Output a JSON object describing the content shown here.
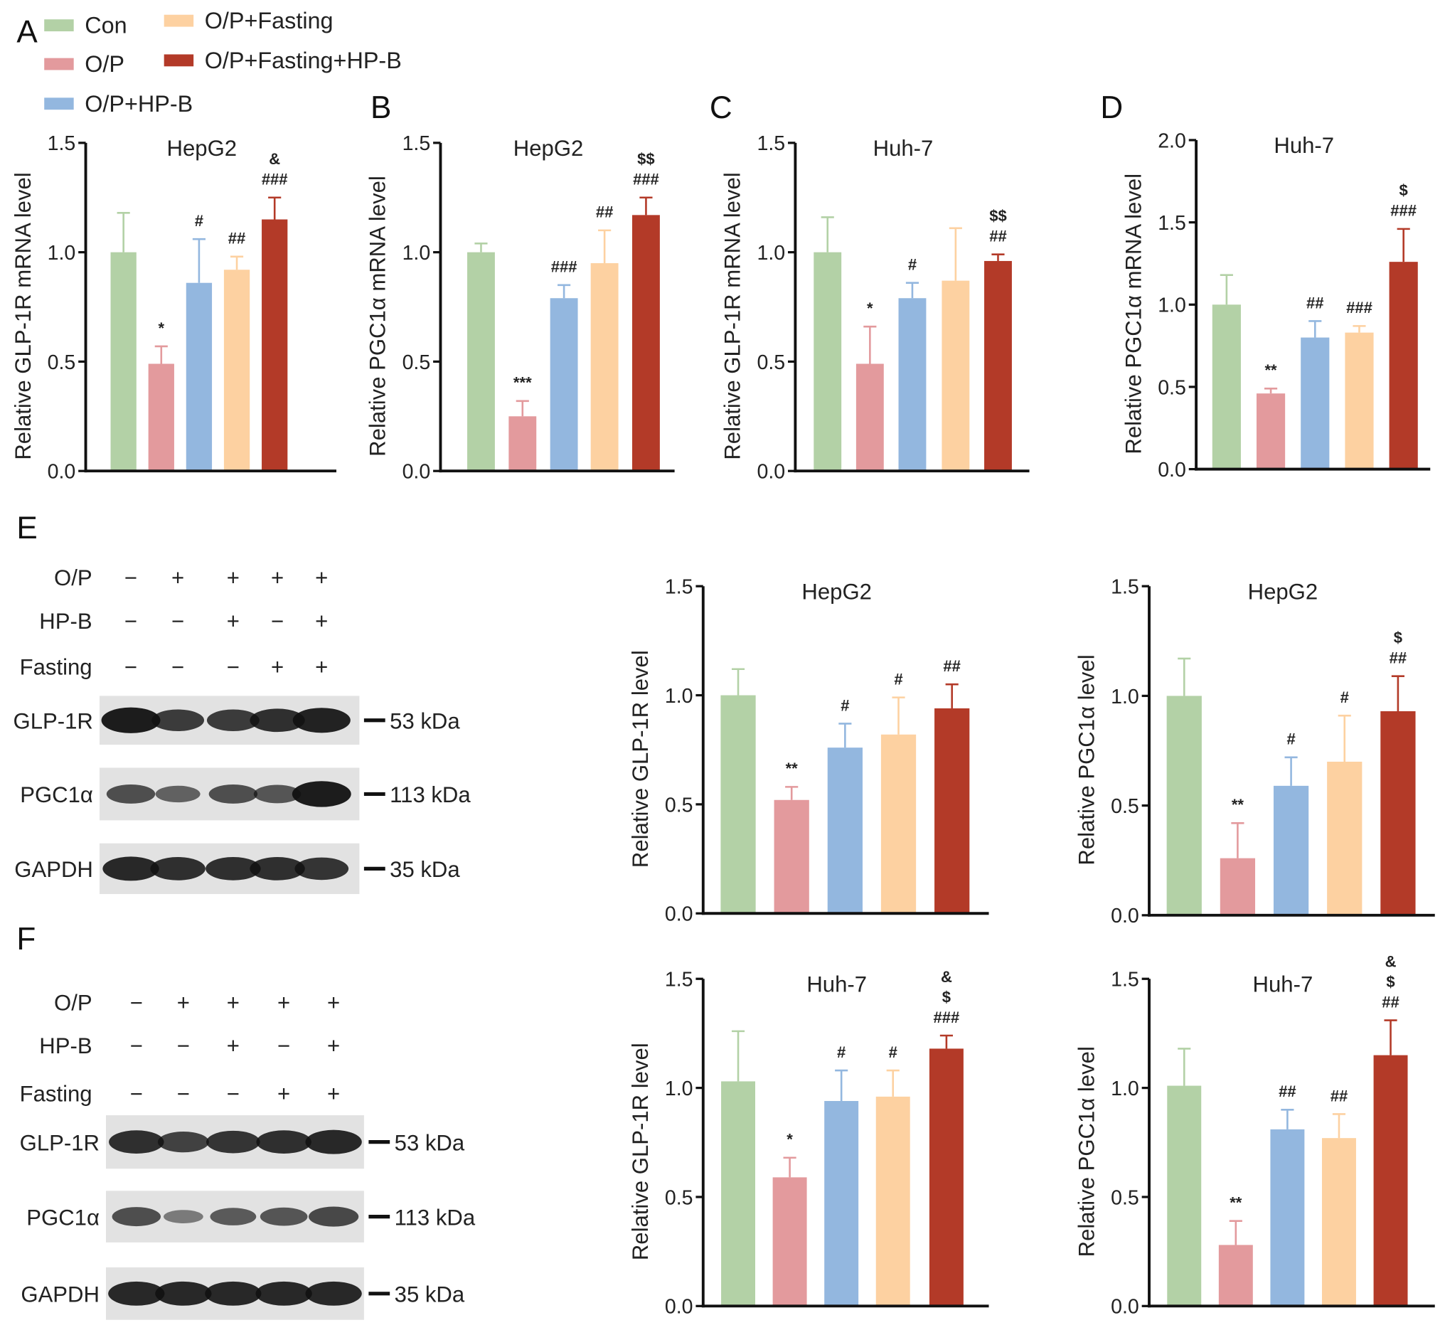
{
  "legend": {
    "position": "top-left",
    "items": [
      {
        "label": "Con",
        "color": "#b3d1a6"
      },
      {
        "label": "O/P",
        "color": "#e39a9d"
      },
      {
        "label": "O/P+HP-B",
        "color": "#93b7df"
      },
      {
        "label": "O/P+Fasting",
        "color": "#fdd1a1"
      },
      {
        "label": "O/P+Fasting+HP-B",
        "color": "#b33a28"
      }
    ]
  },
  "panel_letters": [
    "A",
    "B",
    "C",
    "D",
    "E",
    "F"
  ],
  "chart_data": [
    {
      "panel": "A",
      "type": "bar",
      "title": "HepG2",
      "ylabel": "Relative GLP-1R mRNA level",
      "ylim": [
        0,
        1.5
      ],
      "yticks": [
        "0.0",
        "0.5",
        "1.0",
        "1.5"
      ],
      "categories": [
        "Con",
        "O/P",
        "O/P+HP-B",
        "O/P+Fasting",
        "O/P+Fasting+HP-B"
      ],
      "values": [
        1.0,
        0.49,
        0.86,
        0.92,
        1.15
      ],
      "error_upper": [
        1.18,
        0.57,
        1.06,
        0.98,
        1.25
      ],
      "annotations": [
        [],
        [
          "*"
        ],
        [
          "#"
        ],
        [
          "##"
        ],
        [
          "&",
          "###"
        ]
      ]
    },
    {
      "panel": "B",
      "type": "bar",
      "title": "HepG2",
      "ylabel": "Relative PGC1α mRNA level",
      "ylim": [
        0,
        1.5
      ],
      "yticks": [
        "0.0",
        "0.5",
        "1.0",
        "1.5"
      ],
      "categories": [
        "Con",
        "O/P",
        "O/P+HP-B",
        "O/P+Fasting",
        "O/P+Fasting+HP-B"
      ],
      "values": [
        1.0,
        0.25,
        0.79,
        0.95,
        1.17
      ],
      "error_upper": [
        1.04,
        0.32,
        0.85,
        1.1,
        1.25
      ],
      "annotations": [
        [],
        [
          "***"
        ],
        [
          "###"
        ],
        [
          "##"
        ],
        [
          "$$",
          "###"
        ]
      ]
    },
    {
      "panel": "C",
      "type": "bar",
      "title": "Huh-7",
      "ylabel": "Relative GLP-1R mRNA level",
      "ylim": [
        0,
        1.5
      ],
      "yticks": [
        "0.0",
        "0.5",
        "1.0",
        "1.5"
      ],
      "categories": [
        "Con",
        "O/P",
        "O/P+HP-B",
        "O/P+Fasting",
        "O/P+Fasting+HP-B"
      ],
      "values": [
        1.0,
        0.49,
        0.79,
        0.87,
        0.96
      ],
      "error_upper": [
        1.16,
        0.66,
        0.86,
        1.11,
        0.99
      ],
      "annotations": [
        [],
        [
          "*"
        ],
        [
          "#"
        ],
        [],
        [
          "$$",
          "##"
        ]
      ]
    },
    {
      "panel": "D",
      "type": "bar",
      "title": "Huh-7",
      "ylabel": "Relative PGC1α mRNA level",
      "ylim": [
        0,
        2.0
      ],
      "yticks": [
        "0.0",
        "0.5",
        "1.0",
        "1.5",
        "2.0"
      ],
      "categories": [
        "Con",
        "O/P",
        "O/P+HP-B",
        "O/P+Fasting",
        "O/P+Fasting+HP-B"
      ],
      "values": [
        1.0,
        0.46,
        0.8,
        0.83,
        1.26
      ],
      "error_upper": [
        1.18,
        0.49,
        0.9,
        0.87,
        1.46
      ],
      "annotations": [
        [],
        [
          "**"
        ],
        [
          "##"
        ],
        [
          "###"
        ],
        [
          "$",
          "###"
        ]
      ]
    },
    {
      "panel": "E",
      "type": "bar",
      "title": "HepG2",
      "ylabel": "Relative GLP-1R level",
      "ylim": [
        0,
        1.5
      ],
      "yticks": [
        "0.0",
        "0.5",
        "1.0",
        "1.5"
      ],
      "categories": [
        "Con",
        "O/P",
        "O/P+HP-B",
        "O/P+Fasting",
        "O/P+Fasting+HP-B"
      ],
      "values": [
        1.0,
        0.52,
        0.76,
        0.82,
        0.94
      ],
      "error_upper": [
        1.12,
        0.58,
        0.87,
        0.99,
        1.05
      ],
      "annotations": [
        [],
        [
          "**"
        ],
        [
          "#"
        ],
        [
          "#"
        ],
        [
          "##"
        ]
      ]
    },
    {
      "panel": "E",
      "type": "bar",
      "title": "HepG2",
      "ylabel": "Relative PGC1α level",
      "ylim": [
        0,
        1.5
      ],
      "yticks": [
        "0.0",
        "0.5",
        "1.0",
        "1.5"
      ],
      "categories": [
        "Con",
        "O/P",
        "O/P+HP-B",
        "O/P+Fasting",
        "O/P+Fasting+HP-B"
      ],
      "values": [
        1.0,
        0.26,
        0.59,
        0.7,
        0.93
      ],
      "error_upper": [
        1.17,
        0.42,
        0.72,
        0.91,
        1.09
      ],
      "annotations": [
        [],
        [
          "**"
        ],
        [
          "#"
        ],
        [
          "#"
        ],
        [
          "$",
          "##"
        ]
      ]
    },
    {
      "panel": "F",
      "type": "bar",
      "title": "Huh-7",
      "ylabel": "Relative GLP-1R level",
      "ylim": [
        0,
        1.5
      ],
      "yticks": [
        "0.0",
        "0.5",
        "1.0",
        "1.5"
      ],
      "categories": [
        "Con",
        "O/P",
        "O/P+HP-B",
        "O/P+Fasting",
        "O/P+Fasting+HP-B"
      ],
      "values": [
        1.03,
        0.59,
        0.94,
        0.96,
        1.18
      ],
      "error_upper": [
        1.26,
        0.68,
        1.08,
        1.08,
        1.24
      ],
      "annotations": [
        [],
        [
          "*"
        ],
        [
          "#"
        ],
        [
          "#"
        ],
        [
          "&",
          "$",
          "###"
        ]
      ]
    },
    {
      "panel": "F",
      "type": "bar",
      "title": "Huh-7",
      "ylabel": "Relative PGC1α level",
      "ylim": [
        0,
        1.5
      ],
      "yticks": [
        "0.0",
        "0.5",
        "1.0",
        "1.5"
      ],
      "categories": [
        "Con",
        "O/P",
        "O/P+HP-B",
        "O/P+Fasting",
        "O/P+Fasting+HP-B"
      ],
      "values": [
        1.01,
        0.28,
        0.81,
        0.77,
        1.15
      ],
      "error_upper": [
        1.18,
        0.39,
        0.9,
        0.88,
        1.31
      ],
      "annotations": [
        [],
        [
          "**"
        ],
        [
          "##"
        ],
        [
          "##"
        ],
        [
          "&",
          "$",
          "##"
        ]
      ]
    }
  ],
  "blots": [
    {
      "panel": "E",
      "treatments": [
        {
          "label": "O/P",
          "signs": [
            "−",
            "+",
            "+",
            "+",
            "+"
          ]
        },
        {
          "label": "HP-B",
          "signs": [
            "−",
            "−",
            "+",
            "−",
            "+"
          ]
        },
        {
          "label": "Fasting",
          "signs": [
            "−",
            "−",
            "−",
            "+",
            "+"
          ]
        }
      ],
      "rows": [
        {
          "label": "GLP-1R",
          "size": "53 kDa",
          "band_intensity": [
            1.0,
            0.75,
            0.75,
            0.85,
            0.95
          ]
        },
        {
          "label": "PGC1α",
          "size": "113 kDa",
          "band_intensity": [
            0.6,
            0.45,
            0.6,
            0.55,
            1.0
          ]
        },
        {
          "label": "GAPDH",
          "size": "35 kDa",
          "band_intensity": [
            0.9,
            0.85,
            0.85,
            0.85,
            0.8
          ]
        }
      ]
    },
    {
      "panel": "F",
      "treatments": [
        {
          "label": "O/P",
          "signs": [
            "−",
            "+",
            "+",
            "+",
            "+"
          ]
        },
        {
          "label": "HP-B",
          "signs": [
            "−",
            "−",
            "+",
            "−",
            "+"
          ]
        },
        {
          "label": "Fasting",
          "signs": [
            "−",
            "−",
            "−",
            "+",
            "+"
          ]
        }
      ],
      "rows": [
        {
          "label": "GLP-1R",
          "size": "53 kDa",
          "band_intensity": [
            0.85,
            0.7,
            0.8,
            0.85,
            0.9
          ]
        },
        {
          "label": "PGC1α",
          "size": "113 kDa",
          "band_intensity": [
            0.6,
            0.25,
            0.5,
            0.55,
            0.65
          ]
        },
        {
          "label": "GAPDH",
          "size": "35 kDa",
          "band_intensity": [
            0.9,
            0.9,
            0.9,
            0.9,
            0.9
          ]
        }
      ]
    }
  ]
}
